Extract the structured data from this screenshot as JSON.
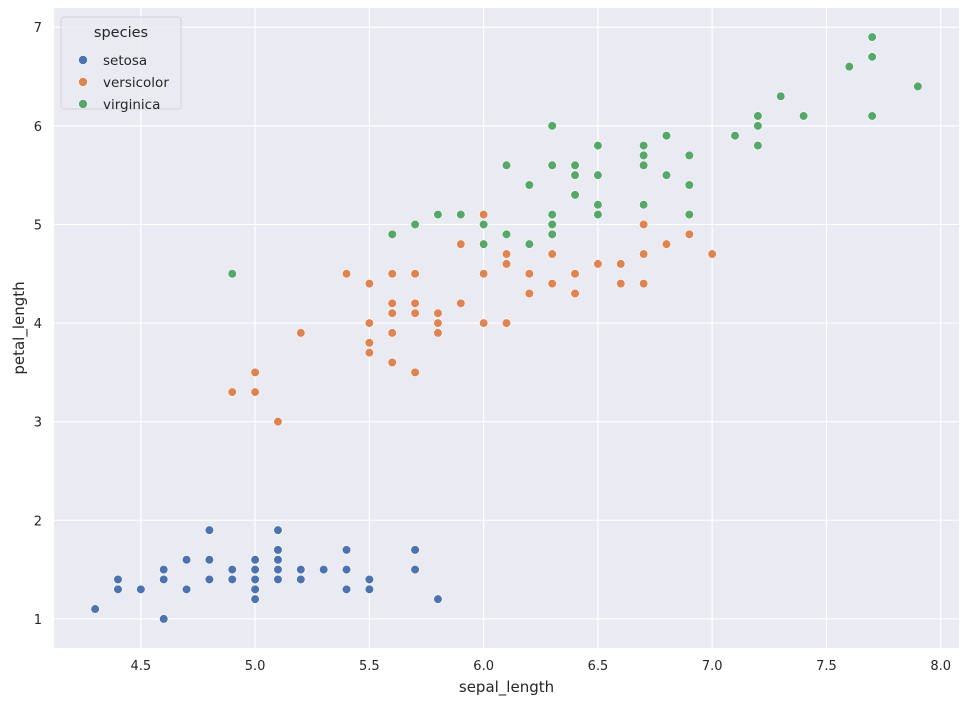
{
  "chart_data": {
    "type": "scatter",
    "xlabel": "sepal_length",
    "ylabel": "petal_length",
    "xlim": [
      4.12,
      8.08
    ],
    "ylim": [
      0.705,
      7.195
    ],
    "xticks": [
      "4.5",
      "5.0",
      "5.5",
      "6.0",
      "6.5",
      "7.0",
      "7.5",
      "8.0"
    ],
    "yticks": [
      "1",
      "2",
      "3",
      "4",
      "5",
      "6",
      "7"
    ],
    "grid": true,
    "legend": {
      "title": "species",
      "placement": "top-left"
    },
    "colors": {
      "background": "#EAEAF2",
      "grid": "#FFFFFF"
    },
    "series": [
      {
        "name": "setosa",
        "color": "#4C72B0",
        "points": [
          [
            5.1,
            1.4
          ],
          [
            4.9,
            1.4
          ],
          [
            4.7,
            1.3
          ],
          [
            4.6,
            1.5
          ],
          [
            5.0,
            1.4
          ],
          [
            5.4,
            1.7
          ],
          [
            4.6,
            1.4
          ],
          [
            5.0,
            1.5
          ],
          [
            4.4,
            1.4
          ],
          [
            4.9,
            1.5
          ],
          [
            5.4,
            1.5
          ],
          [
            4.8,
            1.6
          ],
          [
            4.8,
            1.4
          ],
          [
            4.3,
            1.1
          ],
          [
            5.8,
            1.2
          ],
          [
            5.7,
            1.5
          ],
          [
            5.4,
            1.3
          ],
          [
            5.1,
            1.4
          ],
          [
            5.7,
            1.7
          ],
          [
            5.1,
            1.5
          ],
          [
            5.4,
            1.7
          ],
          [
            5.1,
            1.5
          ],
          [
            4.6,
            1.0
          ],
          [
            5.1,
            1.7
          ],
          [
            4.8,
            1.9
          ],
          [
            5.0,
            1.6
          ],
          [
            5.0,
            1.6
          ],
          [
            5.2,
            1.5
          ],
          [
            5.2,
            1.4
          ],
          [
            4.7,
            1.6
          ],
          [
            4.8,
            1.6
          ],
          [
            5.4,
            1.5
          ],
          [
            5.2,
            1.5
          ],
          [
            5.5,
            1.4
          ],
          [
            4.9,
            1.5
          ],
          [
            5.0,
            1.2
          ],
          [
            5.5,
            1.3
          ],
          [
            4.9,
            1.4
          ],
          [
            4.4,
            1.3
          ],
          [
            5.1,
            1.5
          ],
          [
            5.0,
            1.3
          ],
          [
            4.5,
            1.3
          ],
          [
            4.4,
            1.3
          ],
          [
            5.0,
            1.6
          ],
          [
            5.1,
            1.9
          ],
          [
            4.8,
            1.4
          ],
          [
            5.1,
            1.6
          ],
          [
            4.6,
            1.4
          ],
          [
            5.3,
            1.5
          ],
          [
            5.0,
            1.4
          ]
        ]
      },
      {
        "name": "versicolor",
        "color": "#DD8452",
        "points": [
          [
            7.0,
            4.7
          ],
          [
            6.4,
            4.5
          ],
          [
            6.9,
            4.9
          ],
          [
            5.5,
            4.0
          ],
          [
            6.5,
            4.6
          ],
          [
            5.7,
            4.5
          ],
          [
            6.3,
            4.7
          ],
          [
            4.9,
            3.3
          ],
          [
            6.6,
            4.6
          ],
          [
            5.2,
            3.9
          ],
          [
            5.0,
            3.5
          ],
          [
            5.9,
            4.2
          ],
          [
            6.0,
            4.0
          ],
          [
            6.1,
            4.7
          ],
          [
            5.6,
            3.6
          ],
          [
            6.7,
            4.4
          ],
          [
            5.6,
            4.5
          ],
          [
            5.8,
            4.1
          ],
          [
            6.2,
            4.5
          ],
          [
            5.6,
            3.9
          ],
          [
            5.9,
            4.8
          ],
          [
            6.1,
            4.0
          ],
          [
            6.3,
            4.9
          ],
          [
            6.1,
            4.7
          ],
          [
            6.4,
            4.3
          ],
          [
            6.6,
            4.4
          ],
          [
            6.8,
            4.8
          ],
          [
            6.7,
            5.0
          ],
          [
            6.0,
            4.5
          ],
          [
            5.7,
            3.5
          ],
          [
            5.5,
            3.8
          ],
          [
            5.5,
            3.7
          ],
          [
            5.8,
            3.9
          ],
          [
            6.0,
            5.1
          ],
          [
            5.4,
            4.5
          ],
          [
            6.0,
            4.5
          ],
          [
            6.7,
            4.7
          ],
          [
            6.3,
            4.4
          ],
          [
            5.6,
            4.1
          ],
          [
            5.5,
            4.0
          ],
          [
            5.5,
            4.4
          ],
          [
            6.1,
            4.6
          ],
          [
            5.8,
            4.0
          ],
          [
            5.0,
            3.3
          ],
          [
            5.6,
            4.2
          ],
          [
            5.7,
            4.2
          ],
          [
            5.7,
            4.2
          ],
          [
            6.2,
            4.3
          ],
          [
            5.1,
            3.0
          ],
          [
            5.7,
            4.1
          ]
        ]
      },
      {
        "name": "virginica",
        "color": "#55A868",
        "points": [
          [
            6.3,
            6.0
          ],
          [
            5.8,
            5.1
          ],
          [
            7.1,
            5.9
          ],
          [
            6.3,
            5.6
          ],
          [
            6.5,
            5.8
          ],
          [
            7.6,
            6.6
          ],
          [
            4.9,
            4.5
          ],
          [
            7.3,
            6.3
          ],
          [
            6.7,
            5.8
          ],
          [
            7.2,
            6.1
          ],
          [
            6.5,
            5.1
          ],
          [
            6.4,
            5.3
          ],
          [
            6.8,
            5.5
          ],
          [
            5.7,
            5.0
          ],
          [
            5.8,
            5.1
          ],
          [
            6.4,
            5.3
          ],
          [
            6.5,
            5.5
          ],
          [
            7.7,
            6.7
          ],
          [
            7.7,
            6.9
          ],
          [
            6.0,
            5.0
          ],
          [
            6.9,
            5.7
          ],
          [
            5.6,
            4.9
          ],
          [
            7.7,
            6.7
          ],
          [
            6.3,
            4.9
          ],
          [
            6.7,
            5.7
          ],
          [
            7.2,
            6.0
          ],
          [
            6.2,
            4.8
          ],
          [
            6.1,
            4.9
          ],
          [
            6.4,
            5.6
          ],
          [
            7.2,
            5.8
          ],
          [
            7.4,
            6.1
          ],
          [
            7.9,
            6.4
          ],
          [
            6.4,
            5.6
          ],
          [
            6.3,
            5.1
          ],
          [
            6.1,
            5.6
          ],
          [
            7.7,
            6.1
          ],
          [
            6.3,
            5.6
          ],
          [
            6.4,
            5.5
          ],
          [
            6.0,
            4.8
          ],
          [
            6.9,
            5.4
          ],
          [
            6.7,
            5.6
          ],
          [
            6.9,
            5.1
          ],
          [
            5.8,
            5.1
          ],
          [
            6.8,
            5.9
          ],
          [
            6.7,
            5.7
          ],
          [
            6.7,
            5.2
          ],
          [
            6.3,
            5.0
          ],
          [
            6.5,
            5.2
          ],
          [
            6.2,
            5.4
          ],
          [
            5.9,
            5.1
          ]
        ]
      }
    ]
  }
}
